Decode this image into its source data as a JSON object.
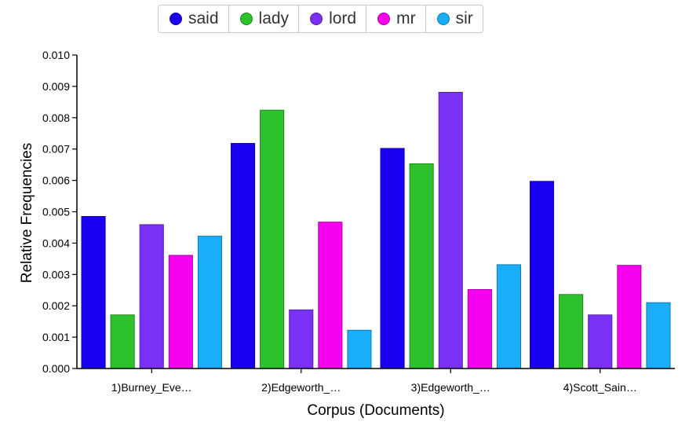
{
  "chart_data": {
    "type": "bar",
    "categories": [
      "1)Burney_Eve…",
      "2)Edgeworth_…",
      "3)Edgeworth_…",
      "4)Scott_Sain…"
    ],
    "series": [
      {
        "name": "said",
        "color": "#1a00f0",
        "values": [
          0.00485,
          0.00718,
          0.00702,
          0.00597
        ]
      },
      {
        "name": "lady",
        "color": "#2ec12e",
        "values": [
          0.00171,
          0.00824,
          0.00653,
          0.00236
        ]
      },
      {
        "name": "lord",
        "color": "#7b30f5",
        "values": [
          0.00459,
          0.00187,
          0.00881,
          0.00171
        ]
      },
      {
        "name": "mr",
        "color": "#f700f0",
        "values": [
          0.00361,
          0.00467,
          0.00252,
          0.00329
        ]
      },
      {
        "name": "sir",
        "color": "#1aaef8",
        "values": [
          0.00422,
          0.00122,
          0.00331,
          0.0021
        ]
      }
    ],
    "yticks": [
      "0.000",
      "0.001",
      "0.002",
      "0.003",
      "0.004",
      "0.005",
      "0.006",
      "0.007",
      "0.008",
      "0.009",
      "0.010"
    ],
    "ylim": [
      0,
      0.01
    ],
    "xlabel": "Corpus (Documents)",
    "ylabel": "Relative Frequencies",
    "legend_position": "top"
  }
}
